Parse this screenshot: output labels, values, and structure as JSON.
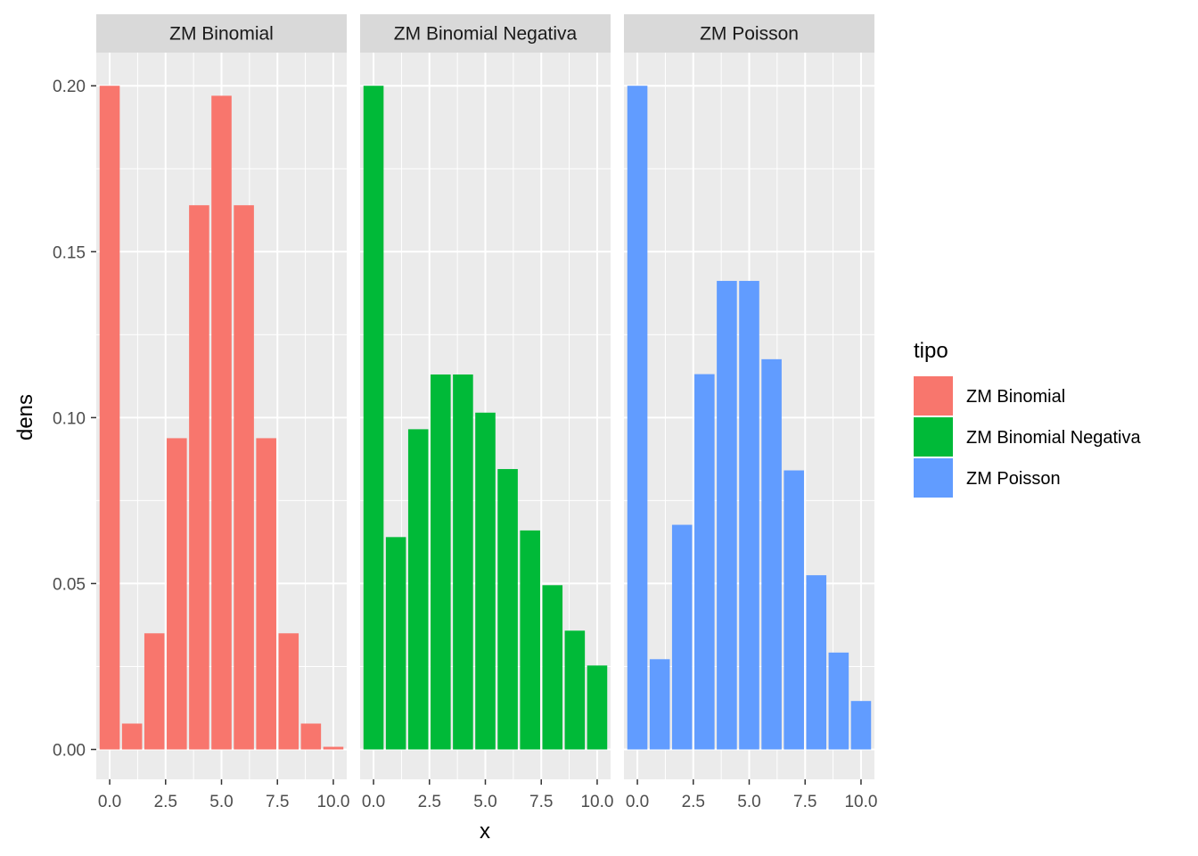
{
  "chart_data": {
    "type": "bar",
    "facet_by": "tipo",
    "xlabel": "x",
    "ylabel": "dens",
    "xlim": [
      -0.6,
      10.6
    ],
    "ylim": [
      -0.009,
      0.21
    ],
    "x_ticks": [
      0,
      2.5,
      5,
      7.5,
      10
    ],
    "x_tick_labels": [
      "0.0",
      "2.5",
      "5.0",
      "7.5",
      "10.0"
    ],
    "y_ticks": [
      0,
      0.05,
      0.1,
      0.15,
      0.2
    ],
    "y_tick_labels": [
      "0.00",
      "0.05",
      "0.10",
      "0.15",
      "0.20"
    ],
    "grid": true,
    "legend": {
      "title": "tipo",
      "placement": "right",
      "entries": [
        "ZM Binomial",
        "ZM Binomial Negativa",
        "ZM Poisson"
      ]
    },
    "x": [
      0,
      1,
      2,
      3,
      4,
      5,
      6,
      7,
      8,
      9,
      10
    ],
    "series": [
      {
        "name": "ZM Binomial",
        "color": "#F8766D",
        "values": [
          0.2,
          0.0078,
          0.035,
          0.0938,
          0.164,
          0.197,
          0.164,
          0.0938,
          0.035,
          0.0078,
          0.0008
        ]
      },
      {
        "name": "ZM Binomial Negativa",
        "color": "#00BA38",
        "values": [
          0.2,
          0.064,
          0.0965,
          0.113,
          0.113,
          0.1015,
          0.0845,
          0.066,
          0.0495,
          0.0358,
          0.0253
        ]
      },
      {
        "name": "ZM Poisson",
        "color": "#619CFF",
        "values": [
          0.2,
          0.0272,
          0.0677,
          0.1131,
          0.1412,
          0.1412,
          0.1176,
          0.0841,
          0.0525,
          0.0292,
          0.0146
        ]
      }
    ]
  }
}
